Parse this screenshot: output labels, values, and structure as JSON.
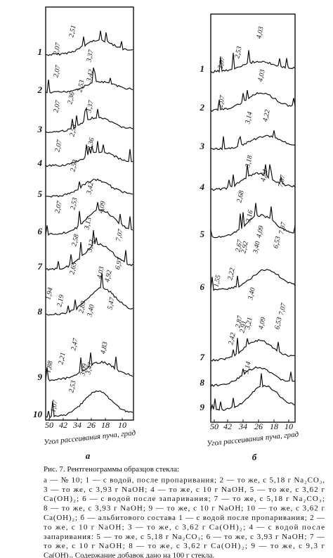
{
  "figure": {
    "panels": [
      {
        "letter": "а",
        "axis_label": "Угол рассеивания пуча, град",
        "ticks": [
          "50",
          "42",
          "34",
          "26",
          "18",
          "10"
        ],
        "curve_numbers": [
          "1",
          "2",
          "3",
          "4",
          "5",
          "6",
          "7",
          "8",
          "9",
          "10"
        ],
        "peak_labels": [
          "2,07",
          "2,51",
          "3,37",
          "2,07",
          "2,36",
          "2,53",
          "3,42",
          "2,07",
          "2,53",
          "3,37",
          "2,07",
          "2,53",
          "3,36",
          "3,42",
          "2,07",
          "2,53",
          "4,09",
          "3,13",
          "2,58",
          "7,07",
          "3,12",
          "2,65",
          "4,03",
          "4,92",
          "6,97",
          "1,94",
          "2,19",
          "2,89",
          "3,40",
          "5,47",
          "2,47",
          "2,21",
          "1,88",
          "4,83",
          "3,09",
          "3,42",
          "2,53",
          "1,07"
        ]
      },
      {
        "letter": "б",
        "axis_label": "Угол рассеивания пуча, град",
        "ticks": [
          "50",
          "42",
          "34",
          "26",
          "18",
          "10"
        ],
        "curve_numbers": [
          "1",
          "2",
          "3",
          "4",
          "5",
          "6",
          "7",
          "8",
          "9"
        ],
        "peak_labels": [
          "2,07",
          "2,53",
          "4,03",
          "4,03",
          "2,07",
          "4,22",
          "3,14",
          "3,18",
          "4,04",
          "2,68",
          "7,07",
          "3,16",
          "2,92",
          "2,67",
          "4,09",
          "7,07",
          "3,40",
          "6,53",
          "2,22",
          "1,55",
          "3,40",
          "3,21",
          "6,53",
          "2,91",
          "2,87",
          "2,42",
          "7,07",
          "4,09",
          "3,14"
        ]
      }
    ],
    "caption": [
      "Рис. 7. Рентгенограммы образцов стекла:",
      "а — № 10; 1 — с водой, после пропаривания; 2 — то же, с 5,18 г Na₂CO₃,",
      "3 — то же, с 3,93 г NaOH; 4 — то же, с 10 г NaOH, 5 — то же, с 3,62 г",
      "Ca(OH)₂; 6 — с водой после запаривания; 7 — то же, с 5,18 г Na₂CO₃;",
      "8 — то же, с 3,93 г NaOH; 9 — то же, с 10 г NaOH; 10 — то же, с 3,62 г",
      "Ca(OH)₂; б — альбитового состава 1 — с водой после пропаривания; 2 —",
      "то же, с 10 г NaOH; 3 — то же, с 3,62 г Ca(OH)₂; 4 — с водой после",
      "запаривания: 5 — то же, с 5,18 г Na₂CO₃; 6 — то же, с 3,93 г NaOH; 7 —",
      "то же, с 10 г NaOH; 8 — то же, с 3,62 г Ca(OH)₂; 9 — то же, с 9,3 г",
      "Ca(OH)₂. Содержание добавок дано на 100 г стекла."
    ]
  }
}
